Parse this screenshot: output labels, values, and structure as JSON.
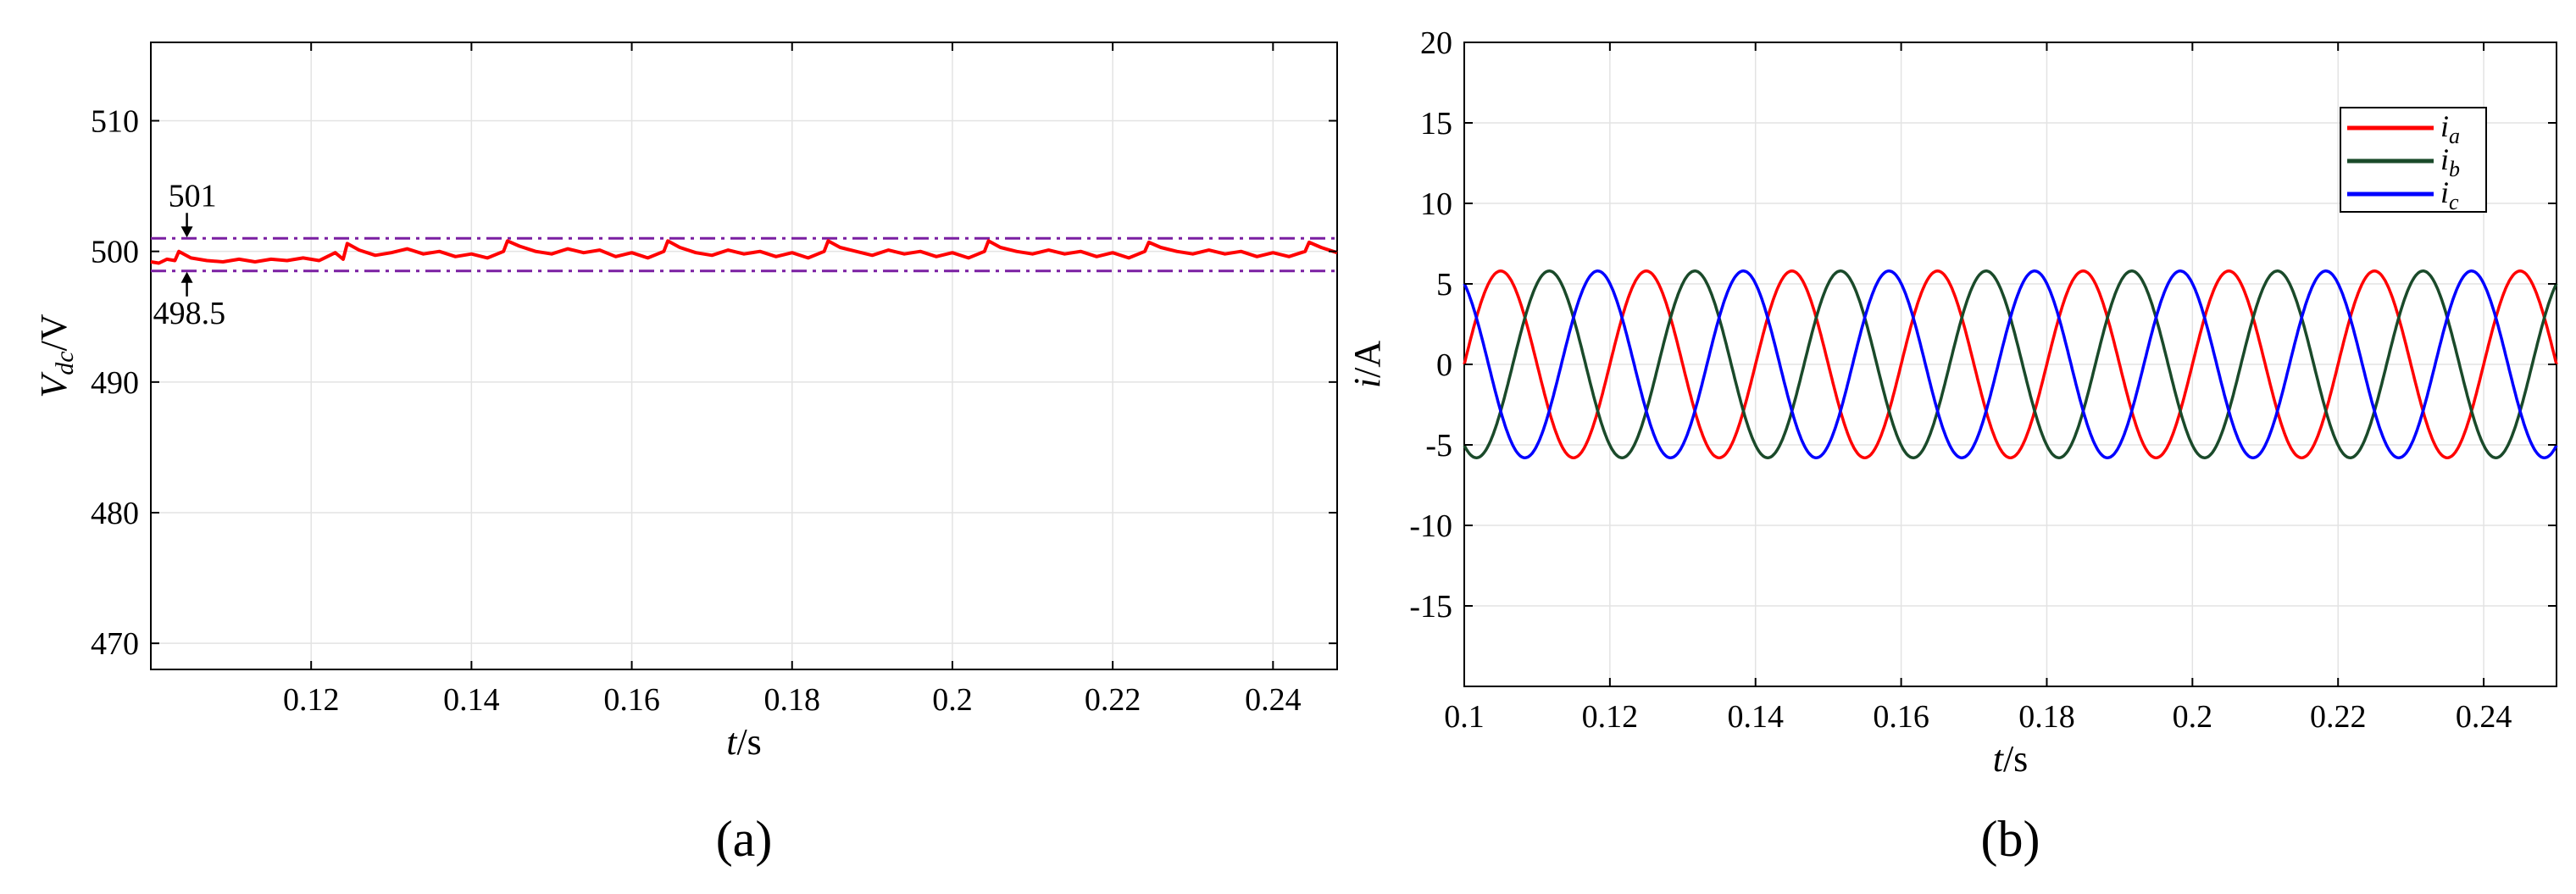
{
  "chart_data": [
    {
      "type": "line",
      "panel_label": "(a)",
      "xlabel_main": "t",
      "xlabel_unit": "/s",
      "ylabel_main": "V",
      "ylabel_sub": "dc",
      "ylabel_unit": "/V",
      "xlim": [
        0.1,
        0.248
      ],
      "ylim": [
        468,
        516
      ],
      "xticks": [
        "0.12",
        "0.14",
        "0.16",
        "0.18",
        "0.2",
        "0.22",
        "0.24"
      ],
      "xtick_values": [
        0.12,
        0.14,
        0.16,
        0.18,
        0.2,
        0.22,
        0.24
      ],
      "yticks": [
        "470",
        "480",
        "490",
        "500",
        "510"
      ],
      "ytick_values": [
        470,
        480,
        490,
        500,
        510
      ],
      "grid": true,
      "reference_lines": [
        {
          "label": "501",
          "value": 501,
          "style": "dash-dot",
          "color": "#7a1fa2"
        },
        {
          "label": "498.5",
          "value": 498.5,
          "style": "dash-dot",
          "color": "#7a1fa2"
        }
      ],
      "series": [
        {
          "color": "#ff0000",
          "x": [
            0.1,
            0.101,
            0.102,
            0.103,
            0.1035,
            0.105,
            0.107,
            0.109,
            0.111,
            0.113,
            0.115,
            0.117,
            0.119,
            0.121,
            0.123,
            0.124,
            0.1245,
            0.126,
            0.128,
            0.13,
            0.132,
            0.134,
            0.136,
            0.138,
            0.14,
            0.142,
            0.144,
            0.1445,
            0.146,
            0.148,
            0.15,
            0.152,
            0.154,
            0.156,
            0.158,
            0.16,
            0.162,
            0.164,
            0.1645,
            0.166,
            0.168,
            0.17,
            0.172,
            0.174,
            0.176,
            0.178,
            0.18,
            0.182,
            0.184,
            0.1845,
            0.186,
            0.188,
            0.19,
            0.192,
            0.194,
            0.196,
            0.198,
            0.2,
            0.202,
            0.204,
            0.2045,
            0.206,
            0.208,
            0.21,
            0.212,
            0.214,
            0.216,
            0.218,
            0.22,
            0.222,
            0.224,
            0.2245,
            0.226,
            0.228,
            0.23,
            0.232,
            0.234,
            0.236,
            0.238,
            0.24,
            0.242,
            0.244,
            0.2445,
            0.246,
            0.248
          ],
          "y": [
            499.2,
            499.1,
            499.4,
            499.3,
            500.0,
            499.5,
            499.3,
            499.2,
            499.4,
            499.2,
            499.4,
            499.3,
            499.5,
            499.3,
            499.9,
            499.4,
            500.6,
            500.1,
            499.7,
            499.9,
            500.2,
            499.8,
            500.0,
            499.6,
            499.8,
            499.5,
            500.0,
            500.8,
            500.4,
            500.0,
            499.8,
            500.2,
            499.9,
            500.1,
            499.6,
            499.9,
            499.5,
            500.0,
            500.8,
            500.3,
            499.9,
            499.7,
            500.1,
            499.8,
            500.0,
            499.6,
            499.9,
            499.5,
            500.0,
            500.8,
            500.3,
            500.0,
            499.7,
            500.1,
            499.8,
            500.0,
            499.6,
            499.9,
            499.5,
            500.0,
            500.8,
            500.3,
            500.0,
            499.8,
            500.1,
            499.8,
            500.0,
            499.6,
            499.9,
            499.5,
            500.0,
            500.7,
            500.3,
            500.0,
            499.8,
            500.1,
            499.8,
            500.0,
            499.6,
            499.9,
            499.6,
            500.0,
            500.7,
            500.3,
            499.9
          ]
        }
      ]
    },
    {
      "type": "line",
      "panel_label": "(b)",
      "xlabel_main": "t",
      "xlabel_unit": "/s",
      "ylabel_main": "i",
      "ylabel_unit": "/A",
      "xlim": [
        0.1,
        0.25
      ],
      "ylim": [
        -20,
        20
      ],
      "xticks": [
        "0.1",
        "0.12",
        "0.14",
        "0.16",
        "0.18",
        "0.2",
        "0.22",
        "0.24"
      ],
      "xtick_values": [
        0.1,
        0.12,
        0.14,
        0.16,
        0.18,
        0.2,
        0.22,
        0.24
      ],
      "yticks": [
        "20",
        "15",
        "10",
        "5",
        "0",
        "-5",
        "-10",
        "-15"
      ],
      "ytick_values": [
        20,
        15,
        10,
        5,
        0,
        -5,
        -10,
        -15
      ],
      "grid": true,
      "legend_position": "top-right",
      "waveform": {
        "amplitude": 5.8,
        "frequency_hz": 50,
        "description": "three-phase sinusoidal currents"
      },
      "series": [
        {
          "name": "i",
          "name_sub": "a",
          "color": "#ff0000",
          "phase_deg": 0
        },
        {
          "name": "i",
          "name_sub": "b",
          "color": "#1a4a2a",
          "phase_deg": -120
        },
        {
          "name": "i",
          "name_sub": "c",
          "color": "#0000ff",
          "phase_deg": 120
        }
      ]
    }
  ]
}
